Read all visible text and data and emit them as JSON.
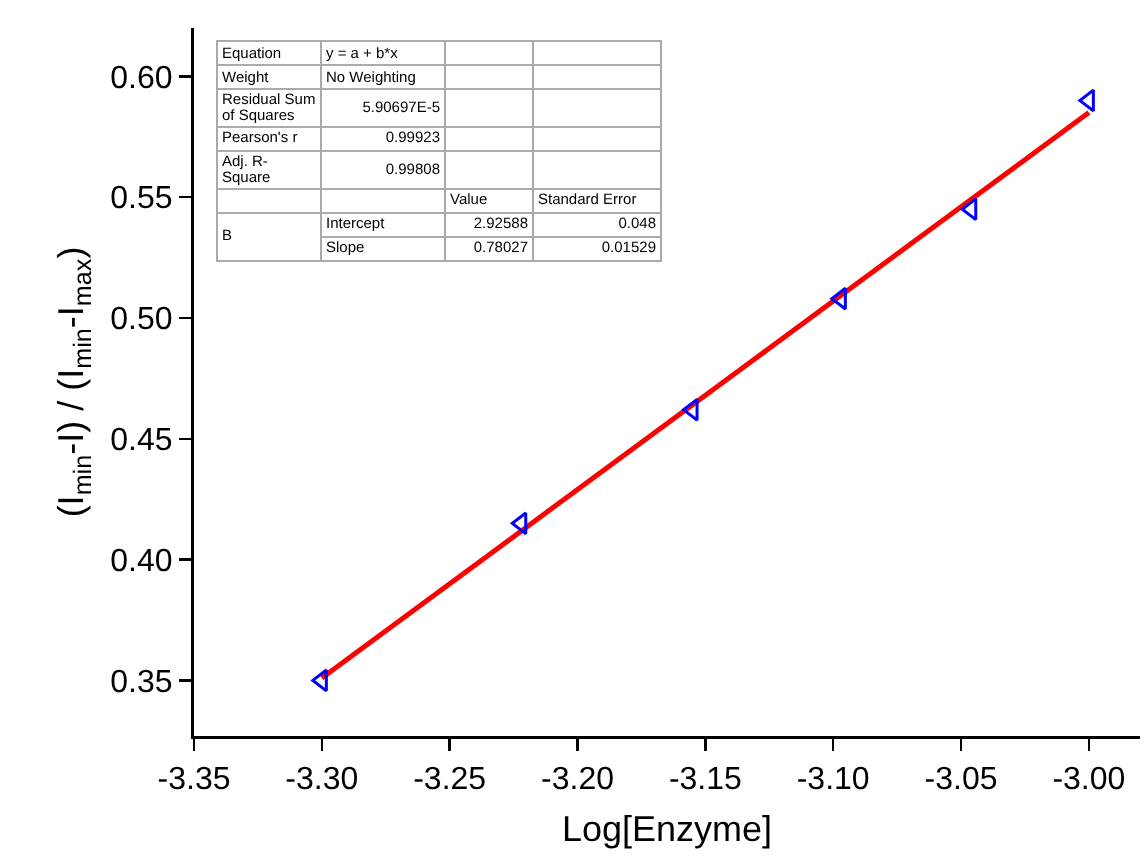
{
  "chart_data": {
    "type": "scatter",
    "xlabel": "Log[Enzyme]",
    "ylabel": "(I$_{min}$-I) / (I$_{min}$-I$_{max}$)",
    "x": [
      -3.3,
      -3.222,
      -3.155,
      -3.097,
      -3.046,
      -3.0
    ],
    "series": [
      {
        "color": "#0000ff",
        "marker": "triangle",
        "values": [
          0.35,
          0.415,
          0.462,
          0.508,
          0.545,
          0.59
        ]
      },
      {
        "type": "line",
        "color": "#ff0000",
        "x": [
          -3.3,
          -3.0
        ],
        "values": [
          0.351,
          0.585
        ],
        "marker": "none",
        "line_style": "solid"
      }
    ],
    "xlim": [
      -3.35,
      -2.98
    ],
    "ylim": [
      0.327,
      0.62
    ],
    "xticks": [
      {
        "value": -3.35,
        "label": "-3.35"
      },
      {
        "value": -3.3,
        "label": "-3.30"
      },
      {
        "value": -3.25,
        "label": "-3.25"
      },
      {
        "value": -3.2,
        "label": "-3.20"
      },
      {
        "value": -3.15,
        "label": "-3.15"
      },
      {
        "value": -3.1,
        "label": "-3.10"
      },
      {
        "value": -3.05,
        "label": "-3.05"
      },
      {
        "value": -3.0,
        "label": "-3.00"
      }
    ],
    "yticks": [
      {
        "value": 0.35,
        "label": "0.35"
      },
      {
        "value": 0.4,
        "label": "0.40"
      },
      {
        "value": 0.45,
        "label": "0.45"
      },
      {
        "value": 0.5,
        "label": "0.50"
      },
      {
        "value": 0.55,
        "label": "0.55"
      },
      {
        "value": 0.6,
        "label": "0.60"
      }
    ],
    "grid": false,
    "annotations": [
      "Equation",
      "y = a + b*x",
      "Weight",
      "No Weighting",
      "Residual Sum of Squares",
      "5.90697E-5",
      "Pearson's r",
      "0.99923",
      "Adj. R-Square",
      "0.99808",
      "Value",
      "Standard Error",
      "B",
      "Intercept",
      "2.92588",
      "0.048",
      "Slope",
      "0.78027",
      "0.01529"
    ]
  }
}
